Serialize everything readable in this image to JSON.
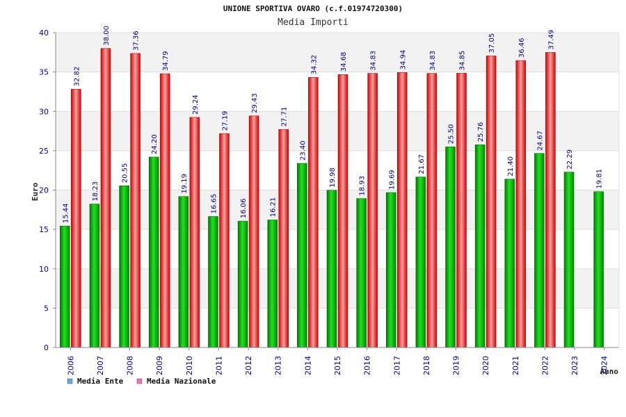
{
  "chart_data": {
    "type": "bar",
    "title": "UNIONE SPORTIVA OVARO (c.f.01974720300)",
    "subtitle": "Media Importi",
    "xlabel": "Anno",
    "ylabel": "Euro",
    "ylim": [
      0,
      40
    ],
    "yticks": [
      "0",
      "5",
      "10",
      "15",
      "20",
      "25",
      "30",
      "35",
      "40"
    ],
    "categories": [
      "2006",
      "2007",
      "2008",
      "2009",
      "2010",
      "2011",
      "2012",
      "2013",
      "2014",
      "2015",
      "2016",
      "2017",
      "2018",
      "2019",
      "2020",
      "2021",
      "2022",
      "2023",
      "2024"
    ],
    "series": [
      {
        "name": "Media Ente",
        "color": "#00c000",
        "values": [
          15.44,
          18.23,
          20.55,
          24.2,
          19.19,
          16.65,
          16.06,
          16.21,
          23.4,
          19.98,
          18.93,
          19.69,
          21.67,
          25.5,
          25.76,
          21.4,
          24.67,
          22.29,
          19.81
        ],
        "labels": [
          "15.44",
          "18.23",
          "20.55",
          "24.20",
          "19.19",
          "16.65",
          "16.06",
          "16.21",
          "23.40",
          "19.98",
          "18.93",
          "19.69",
          "21.67",
          "25.50",
          "25.76",
          "21.40",
          "24.67",
          "22.29",
          "19.81"
        ]
      },
      {
        "name": "Media Nazionale",
        "color": "#ff2020",
        "values": [
          32.82,
          38.0,
          37.36,
          34.79,
          29.24,
          27.19,
          29.43,
          27.71,
          34.32,
          34.68,
          34.83,
          34.94,
          34.83,
          34.85,
          37.05,
          36.46,
          37.49,
          null,
          null
        ],
        "labels": [
          "32.82",
          "38.00",
          "37.36",
          "34.79",
          "29.24",
          "27.19",
          "29.43",
          "27.71",
          "34.32",
          "34.68",
          "34.83",
          "34.94",
          "34.83",
          "34.85",
          "37.05",
          "36.46",
          "37.49",
          null,
          null
        ]
      }
    ],
    "legend": [
      {
        "label": "Media Ente",
        "color": "#5fa8e8"
      },
      {
        "label": "Media Nazionale",
        "color": "#e87ab0"
      }
    ],
    "legend_position": "bottom-left",
    "grid": true
  }
}
